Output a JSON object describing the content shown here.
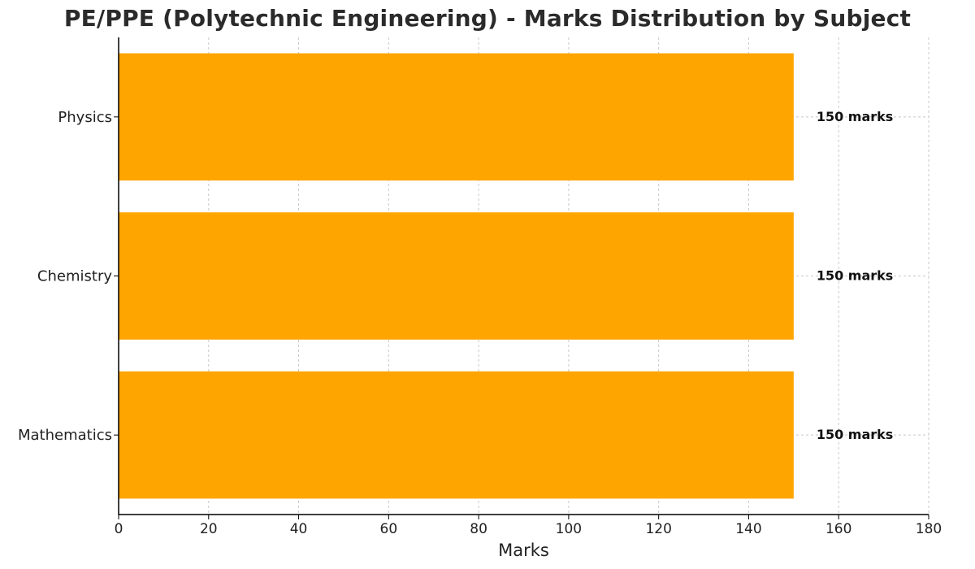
{
  "chart_data": {
    "type": "bar",
    "orientation": "horizontal",
    "title": "PE/PPE (Polytechnic Engineering) - Marks Distribution by Subject",
    "xlabel": "Marks",
    "ylabel": "",
    "categories": [
      "Physics",
      "Chemistry",
      "Mathematics"
    ],
    "values": [
      150,
      150,
      150
    ],
    "data_labels": [
      "150 marks",
      "150 marks",
      "150 marks"
    ],
    "xlim": [
      0,
      180
    ],
    "x_ticks": [
      0,
      20,
      40,
      60,
      80,
      100,
      120,
      140,
      160,
      180
    ],
    "grid": true,
    "bar_color": "#ffa500"
  }
}
